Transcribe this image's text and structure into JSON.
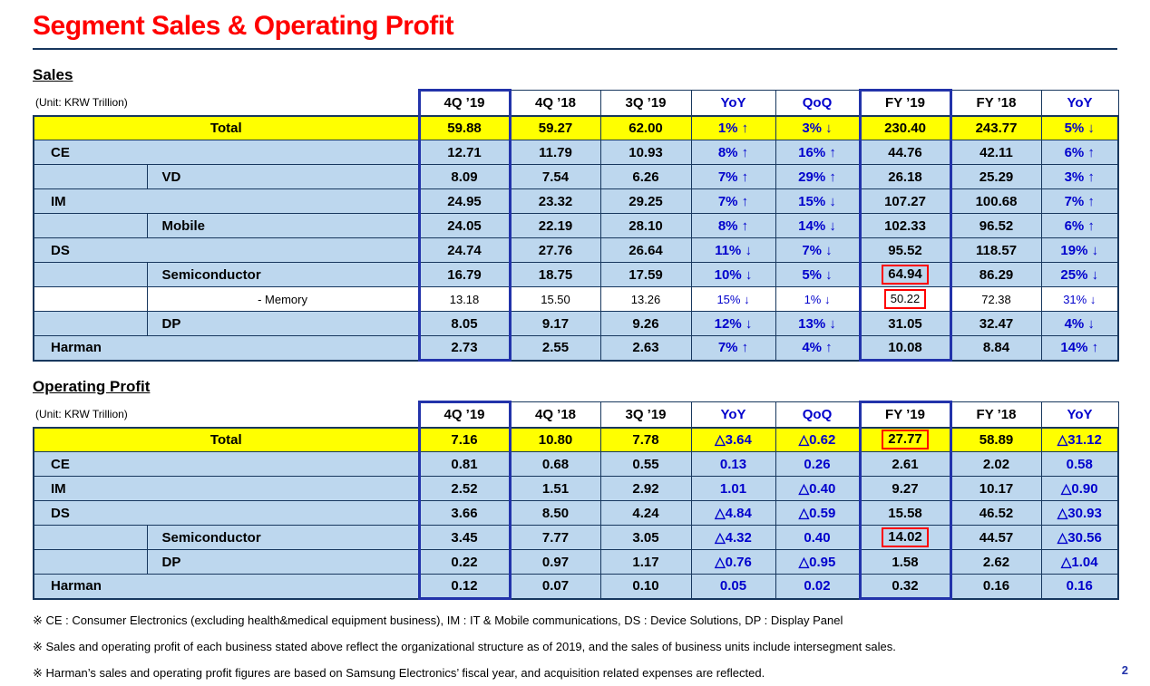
{
  "title": "Segment Sales & Operating Profit",
  "page_number": "2",
  "colors": {
    "title_red": "#FF0000",
    "cell_blue": "#BDD7EE",
    "border_navy": "#17375E",
    "highlight_box_blue": "#2233AA",
    "value_blue": "#0000CC",
    "total_yellow": "#FFFF00",
    "red_box": "#FF0000"
  },
  "tables": [
    {
      "id": "sales",
      "heading": "Sales",
      "unit": "(Unit: KRW Trillion)",
      "columns": [
        "4Q ’19",
        "4Q ’18",
        "3Q ’19",
        "YoY",
        "QoQ",
        "FY ’19",
        "FY ’18",
        "YoY"
      ],
      "blue_cols": [
        3,
        4,
        7
      ],
      "highlight_cols": [
        0,
        5
      ],
      "rows": [
        {
          "label": "Total",
          "type": "total",
          "cells": [
            "59.88",
            "59.27",
            "62.00",
            "1% ↑",
            "3% ↓",
            "230.40",
            "243.77",
            "5% ↓"
          ]
        },
        {
          "label": "CE",
          "type": "top",
          "cells": [
            "12.71",
            "11.79",
            "10.93",
            "8% ↑",
            "16% ↑",
            "44.76",
            "42.11",
            "6% ↑"
          ]
        },
        {
          "label": "VD",
          "type": "sub",
          "cells": [
            "8.09",
            "7.54",
            "6.26",
            "7% ↑",
            "29% ↑",
            "26.18",
            "25.29",
            "3% ↑"
          ]
        },
        {
          "label": "IM",
          "type": "top",
          "cells": [
            "24.95",
            "23.32",
            "29.25",
            "7% ↑",
            "15% ↓",
            "107.27",
            "100.68",
            "7% ↑"
          ]
        },
        {
          "label": "Mobile",
          "type": "sub",
          "cells": [
            "24.05",
            "22.19",
            "28.10",
            "8% ↑",
            "14% ↓",
            "102.33",
            "96.52",
            "6% ↑"
          ]
        },
        {
          "label": "DS",
          "type": "top",
          "cells": [
            "24.74",
            "27.76",
            "26.64",
            "11% ↓",
            "7% ↓",
            "95.52",
            "118.57",
            "19% ↓"
          ]
        },
        {
          "label": "Semiconductor",
          "type": "sub",
          "red_box": [
            5
          ],
          "cells": [
            "16.79",
            "18.75",
            "17.59",
            "10% ↓",
            "5% ↓",
            "64.94",
            "86.29",
            "25% ↓"
          ]
        },
        {
          "label": "- Memory",
          "type": "memory",
          "red_box": [
            5
          ],
          "cells": [
            "13.18",
            "15.50",
            "13.26",
            "15% ↓",
            "1% ↓",
            "50.22",
            "72.38",
            "31% ↓"
          ]
        },
        {
          "label": "DP",
          "type": "sub",
          "cells": [
            "8.05",
            "9.17",
            "9.26",
            "12% ↓",
            "13% ↓",
            "31.05",
            "32.47",
            "4% ↓"
          ]
        },
        {
          "label": "Harman",
          "type": "top",
          "cells": [
            "2.73",
            "2.55",
            "2.63",
            "7% ↑",
            "4% ↑",
            "10.08",
            "8.84",
            "14% ↑"
          ]
        }
      ]
    },
    {
      "id": "operating-profit",
      "heading": "Operating Profit",
      "unit": "(Unit: KRW Trillion)",
      "columns": [
        "4Q ’19",
        "4Q ’18",
        "3Q ’19",
        "YoY",
        "QoQ",
        "FY ’19",
        "FY ’18",
        "YoY"
      ],
      "blue_cols": [
        3,
        4,
        7
      ],
      "highlight_cols": [
        0,
        5
      ],
      "rows": [
        {
          "label": "Total",
          "type": "total",
          "red_box": [
            5
          ],
          "cells": [
            "7.16",
            "10.80",
            "7.78",
            "△3.64",
            "△0.62",
            "27.77",
            "58.89",
            "△31.12"
          ]
        },
        {
          "label": "CE",
          "type": "top",
          "cells": [
            "0.81",
            "0.68",
            "0.55",
            "0.13",
            "0.26",
            "2.61",
            "2.02",
            "0.58"
          ]
        },
        {
          "label": "IM",
          "type": "top",
          "cells": [
            "2.52",
            "1.51",
            "2.92",
            "1.01",
            "△0.40",
            "9.27",
            "10.17",
            "△0.90"
          ]
        },
        {
          "label": "DS",
          "type": "top",
          "cells": [
            "3.66",
            "8.50",
            "4.24",
            "△4.84",
            "△0.59",
            "15.58",
            "46.52",
            "△30.93"
          ]
        },
        {
          "label": "Semiconductor",
          "type": "sub",
          "red_box": [
            5
          ],
          "cells": [
            "3.45",
            "7.77",
            "3.05",
            "△4.32",
            "0.40",
            "14.02",
            "44.57",
            "△30.56"
          ]
        },
        {
          "label": "DP",
          "type": "sub",
          "cells": [
            "0.22",
            "0.97",
            "1.17",
            "△0.76",
            "△0.95",
            "1.58",
            "2.62",
            "△1.04"
          ]
        },
        {
          "label": "Harman",
          "type": "top",
          "cells": [
            "0.12",
            "0.07",
            "0.10",
            "0.05",
            "0.02",
            "0.32",
            "0.16",
            "0.16"
          ]
        }
      ]
    }
  ],
  "footnotes": [
    "※ CE : Consumer Electronics (excluding health&medical equipment business),  IM : IT & Mobile communications,  DS : Device Solutions,  DP : Display Panel",
    "※ Sales and operating profit of each business stated above reflect the organizational structure  as of 2019, and the sales of business units include intersegment sales.",
    "※ Harman’s sales and operating profit figures are based on Samsung Electronics’ fiscal year, and acquisition related expenses are reflected."
  ]
}
